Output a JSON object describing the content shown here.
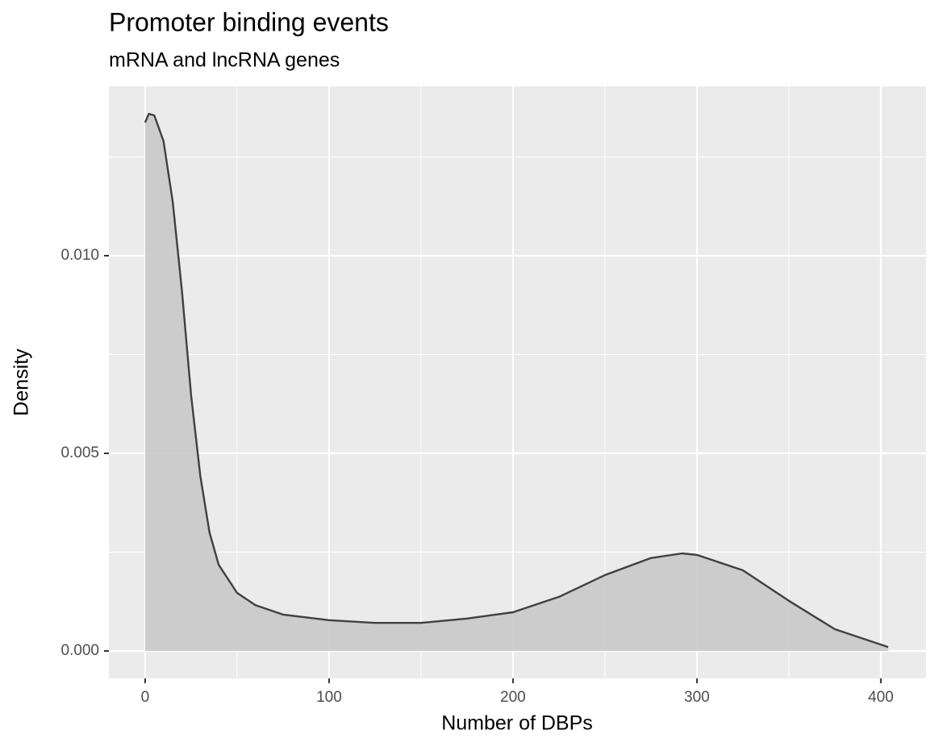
{
  "chart_data": {
    "type": "area",
    "title": "Promoter binding events",
    "subtitle": "mRNA and lncRNA genes",
    "x_label": "Number of DBPs",
    "y_label": "Density",
    "x": [
      0,
      2,
      5,
      10,
      15,
      20,
      25,
      30,
      35,
      40,
      50,
      60,
      75,
      100,
      125,
      150,
      175,
      200,
      225,
      250,
      275,
      292,
      300,
      325,
      350,
      375,
      404
    ],
    "values": [
      0.01337,
      0.01359,
      0.01355,
      0.0129,
      0.01137,
      0.00912,
      0.00647,
      0.00443,
      0.003,
      0.00218,
      0.00147,
      0.00116,
      0.00092,
      0.00078,
      0.00071,
      0.00071,
      0.00082,
      0.00098,
      0.00137,
      0.00192,
      0.00235,
      0.00247,
      0.00243,
      0.00204,
      0.00127,
      0.00055,
      0.0001
    ],
    "color": "#c9c9c9",
    "line_color": "#404040",
    "xlim": [
      -19.7,
      424.6
    ],
    "ylim": [
      -0.000694,
      0.014286
    ],
    "xticks": [
      0,
      100,
      200,
      300,
      400
    ],
    "yticks": [
      {
        "value": 0,
        "label": "0.000"
      },
      {
        "value": 0.005,
        "label": "0.005"
      },
      {
        "value": 0.01,
        "label": "0.010"
      }
    ],
    "x_minor_grid": [
      50,
      150,
      250,
      350
    ],
    "y_minor_grid": [
      0.0025,
      0.0075,
      0.0125
    ],
    "grid": true
  }
}
